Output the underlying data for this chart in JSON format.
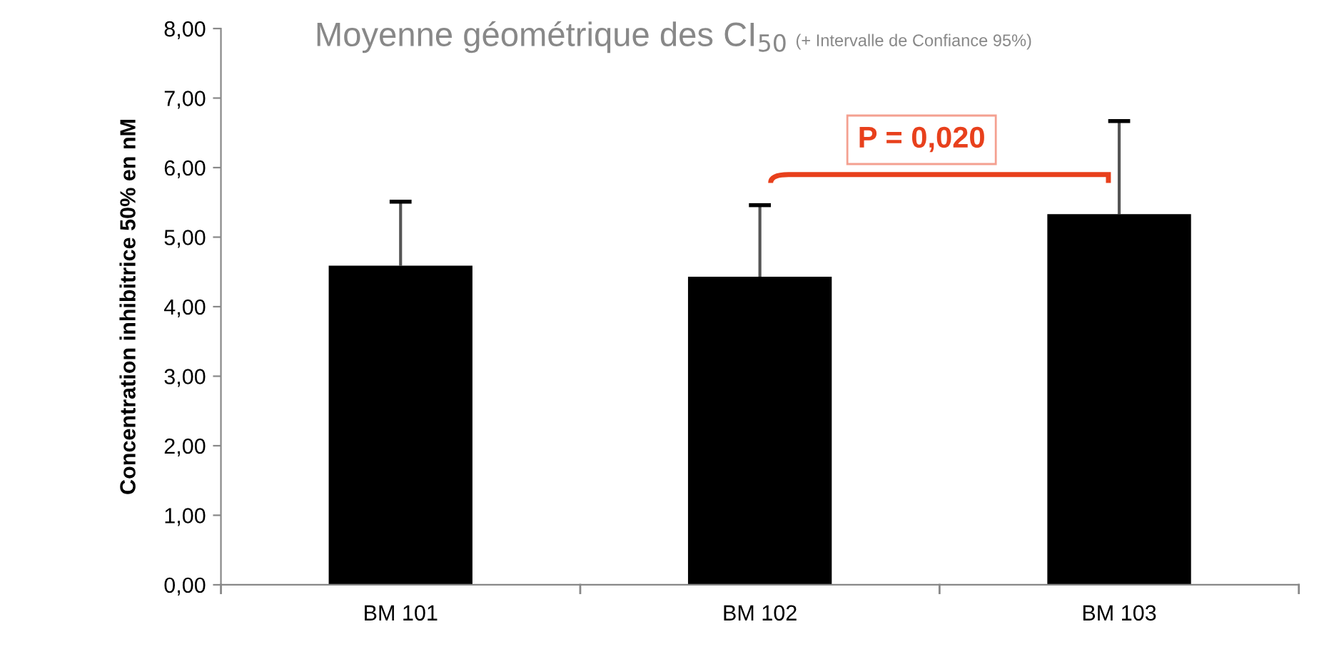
{
  "chart_data": {
    "type": "bar",
    "title": "Moyenne géométrique des CI$_{50}$",
    "subtitle": "(+ Intervalle de Confiance 95%)",
    "ylabel": "Concentration inhibitrice 50% en nM",
    "categories": [
      "BM 101",
      "BM 102",
      "BM 103"
    ],
    "values": [
      4.59,
      4.43,
      5.33
    ],
    "color": "#000000",
    "errors": [
      [
        4.59,
        5.51
      ],
      [
        4.43,
        5.46
      ],
      [
        5.33,
        6.67
      ]
    ],
    "ylim": [
      0,
      8
    ],
    "yticks": [
      {
        "value": 0,
        "label": "0,00"
      },
      {
        "value": 1,
        "label": "1,00"
      },
      {
        "value": 2,
        "label": "2,00"
      },
      {
        "value": 3,
        "label": "3,00"
      },
      {
        "value": 4,
        "label": "4,00"
      },
      {
        "value": 5,
        "label": "5,00"
      },
      {
        "value": 6,
        "label": "6,00"
      },
      {
        "value": 7,
        "label": "7,00"
      },
      {
        "value": 8,
        "label": "8,00"
      }
    ],
    "annotations": [
      "P = 0,020"
    ],
    "grid": false,
    "legend": false
  }
}
